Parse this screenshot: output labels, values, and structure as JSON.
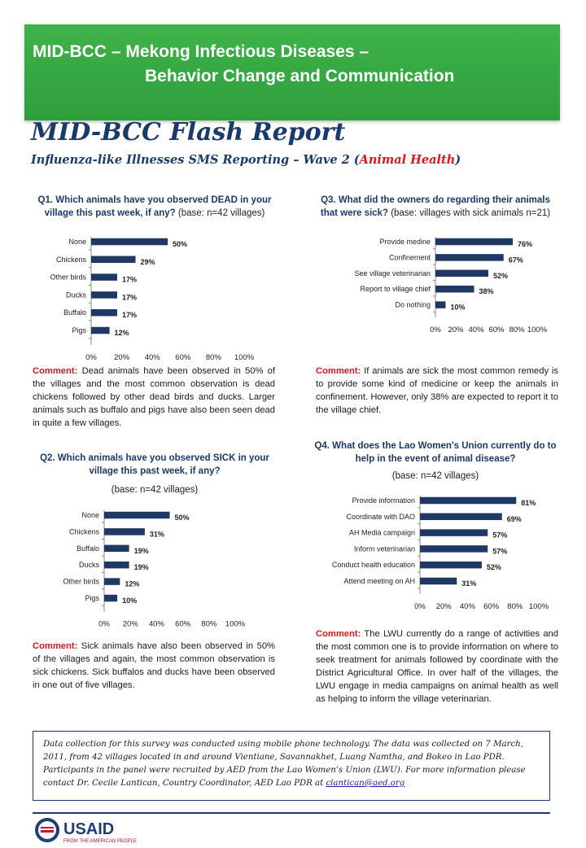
{
  "banner": {
    "line1": "MID-BCC – Mekong Infectious Diseases –",
    "line2": "Behavior Change and Communication"
  },
  "report": {
    "title": "MID-BCC Flash Report",
    "subtitle_pre": "Influenza-like Illnesses SMS Reporting – Wave 2 (",
    "subtitle_red": "Animal Health",
    "subtitle_post": ")"
  },
  "q1": {
    "title": "Q1. Which animals have you observed DEAD in your village this past week, if any?",
    "base": "(base: n=42 villages)",
    "comment_label": "Comment:",
    "comment": "Dead animals have been observed in 50% of the villages and the most common observation is dead chickens followed by other dead birds and ducks. Larger animals such as buffalo and pigs have also been seen dead in quite a few villages."
  },
  "q2": {
    "title": "Q2. Which animals have you observed SICK in your village this past week, if any?",
    "base": "(base: n=42 villages)",
    "comment_label": "Comment:",
    "comment": "Sick animals have also been observed in 50% of the villages and again, the most common observation is sick chickens. Sick buffalos and ducks have been observed in one out of five villages."
  },
  "q3": {
    "title": "Q3. What did the owners do regarding their animals that were sick?",
    "base": "(base: villages with sick animals n=21)",
    "comment_label": "Comment:",
    "comment": "If animals are sick the most common remedy is to provide some kind of medicine or keep the animals in confinement. However, only 38% are expected to report it to the village chief."
  },
  "q4": {
    "title": "Q4. What does the Lao Women's Union currently do to help in the event of animal disease?",
    "base": "(base: n=42 villages)",
    "comment_label": "Comment:",
    "comment": "The LWU currently do a range of activities and the most common one is to provide information on where to seek treatment for animals followed by coordinate with the District Agricultural Office. In over half of the villages, the LWU engage in media campaigns on animal health as well as helping to inform the village veterinarian."
  },
  "chart_data": [
    {
      "type": "bar",
      "orientation": "horizontal",
      "categories": [
        "None",
        "Chickens",
        "Other birds",
        "Ducks",
        "Buffalo",
        "Pigs"
      ],
      "values": [
        50,
        29,
        17,
        17,
        17,
        12
      ],
      "value_labels": [
        "50%",
        "29%",
        "17%",
        "17%",
        "17%",
        "12%"
      ],
      "xticks": [
        "0%",
        "20%",
        "40%",
        "60%",
        "80%",
        "100%"
      ],
      "xlim": [
        0,
        100
      ]
    },
    {
      "type": "bar",
      "orientation": "horizontal",
      "categories": [
        "None",
        "Chickens",
        "Buffalo",
        "Ducks",
        "Other birds",
        "Pigs"
      ],
      "values": [
        50,
        31,
        19,
        19,
        12,
        10
      ],
      "value_labels": [
        "50%",
        "31%",
        "19%",
        "19%",
        "12%",
        "10%"
      ],
      "xticks": [
        "0%",
        "20%",
        "40%",
        "60%",
        "80%",
        "100%"
      ],
      "xlim": [
        0,
        100
      ]
    },
    {
      "type": "bar",
      "orientation": "horizontal",
      "categories": [
        "Provide medine",
        "Confinement",
        "See village veterinarian",
        "Report to village chief",
        "Do nothing"
      ],
      "values": [
        76,
        67,
        52,
        38,
        10
      ],
      "value_labels": [
        "76%",
        "67%",
        "52%",
        "38%",
        "10%"
      ],
      "xticks": [
        "0%",
        "20%",
        "40%",
        "60%",
        "80%",
        "100%"
      ],
      "xlim": [
        0,
        100
      ]
    },
    {
      "type": "bar",
      "orientation": "horizontal",
      "categories": [
        "Provide information",
        "Coordinate with DAO",
        "AH Media campaign",
        "Inform veterinarian",
        "Conduct health education",
        "Attend meeting on AH"
      ],
      "values": [
        81,
        69,
        57,
        57,
        52,
        31
      ],
      "value_labels": [
        "81%",
        "69%",
        "57%",
        "57%",
        "52%",
        "31%"
      ],
      "xticks": [
        "0%",
        "20%",
        "40%",
        "60%",
        "80%",
        "100%"
      ],
      "xlim": [
        0,
        100
      ]
    }
  ],
  "footer": {
    "text": "Data collection for this survey was conducted using mobile phone technology. The data was collected on 7 March, 2011, from 42 villages located in and around Vientiane, Savannakhet, Luang Namtha, and Bokeo in Lao PDR. Participants in the panel were recruited by AED from the Lao Women’s Union (LWU). For more information please contact Dr. Cecile Lantican, Country Coordinator, AED Lao PDR at",
    "email": "clantican@aed.org"
  },
  "logo": {
    "name": "USAID",
    "tagline": "FROM THE AMERICAN PEOPLE"
  },
  "colors": {
    "banner": "#2e9e3c",
    "title": "#1a3a6b",
    "bar": "#1f3864",
    "accent_red": "#d7191c"
  }
}
